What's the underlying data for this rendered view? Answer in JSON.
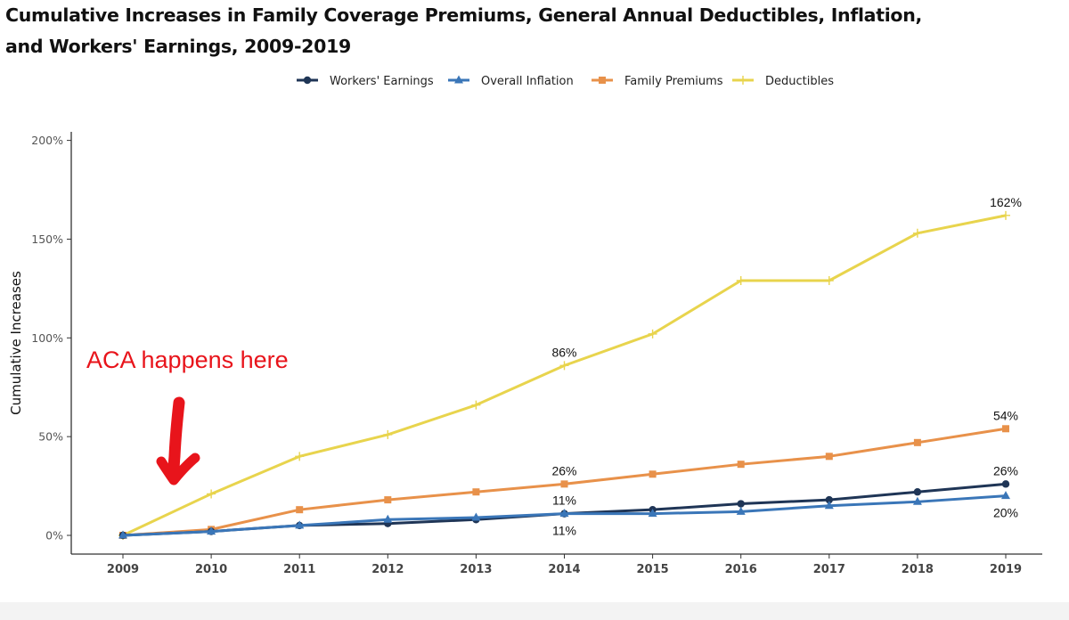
{
  "chart_data": {
    "type": "line",
    "title_line1": "Cumulative Increases in Family Coverage Premiums, General Annual Deductibles, Inflation,",
    "title_line2": "and Workers' Earnings, 2009-2019",
    "ylabel": "Cumulative Increases",
    "x": [
      "2009",
      "2010",
      "2011",
      "2012",
      "2013",
      "2014",
      "2015",
      "2016",
      "2017",
      "2018",
      "2019"
    ],
    "ylim": [
      0,
      200
    ],
    "yticks": [
      {
        "value": 0,
        "label": "0%"
      },
      {
        "value": 50,
        "label": "50%"
      },
      {
        "value": 100,
        "label": "100%"
      },
      {
        "value": 150,
        "label": "150%"
      },
      {
        "value": 200,
        "label": "200%"
      }
    ],
    "legend_position": "top-center",
    "grid": false,
    "series": [
      {
        "name": "Workers' Earnings",
        "color": "#1f3556",
        "marker": "circle",
        "values": [
          0,
          2,
          5,
          6,
          8,
          11,
          13,
          16,
          18,
          22,
          26
        ]
      },
      {
        "name": "Overall Inflation",
        "color": "#3a76b8",
        "marker": "triangle",
        "values": [
          0,
          2,
          5,
          8,
          9,
          11,
          11,
          12,
          15,
          17,
          20
        ]
      },
      {
        "name": "Family Premiums",
        "color": "#e8914a",
        "marker": "square",
        "values": [
          0,
          3,
          13,
          18,
          22,
          26,
          31,
          36,
          40,
          47,
          54
        ]
      },
      {
        "name": "Deductibles",
        "color": "#e8d44d",
        "marker": "plus",
        "values": [
          0,
          21,
          40,
          51,
          66,
          86,
          102,
          129,
          129,
          153,
          162
        ]
      }
    ],
    "data_labels": [
      {
        "text": "162%",
        "x": "2019",
        "y": 162,
        "pos": "above"
      },
      {
        "text": "86%",
        "x": "2014",
        "y": 86,
        "pos": "above"
      },
      {
        "text": "54%",
        "x": "2019",
        "y": 54,
        "pos": "above"
      },
      {
        "text": "26%",
        "x": "2014",
        "y": 26,
        "pos": "above"
      },
      {
        "text": "26%",
        "x": "2019",
        "y": 26,
        "pos": "above"
      },
      {
        "text": "11%",
        "x": "2014",
        "y": 11,
        "pos": "above"
      },
      {
        "text": "11%",
        "x": "2014",
        "y": 11,
        "pos": "below"
      },
      {
        "text": "20%",
        "x": "2019",
        "y": 20,
        "pos": "below"
      }
    ],
    "annotation": {
      "text": "ACA happens here",
      "color": "#e8141b"
    }
  }
}
